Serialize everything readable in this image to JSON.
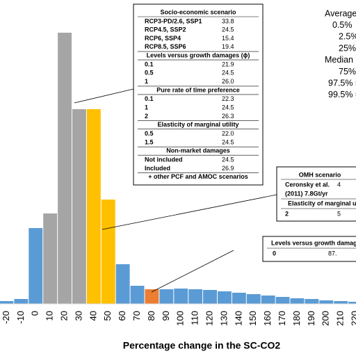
{
  "chart_data": {
    "type": "bar",
    "x_label": "Percentage change in the SC-CO2",
    "categories": [
      "-20",
      "-10",
      "0",
      "10",
      "20",
      "30",
      "40",
      "50",
      "60",
      "70",
      "80",
      "90",
      "100",
      "110",
      "120",
      "130",
      "140",
      "150",
      "160",
      "170",
      "180",
      "190",
      "200",
      "210",
      "220"
    ],
    "values": [
      4,
      7,
      109,
      130,
      390,
      280,
      280,
      150,
      57,
      26,
      21,
      21,
      22,
      21,
      20,
      18,
      16,
      14,
      12,
      10,
      8,
      7,
      5,
      4,
      3
    ],
    "colors": [
      "#5b9bd5",
      "#5b9bd5",
      "#5b9bd5",
      "#a5a5a5",
      "#a5a5a5",
      "#a5a5a5",
      "#ffc000",
      "#ffc000",
      "#5b9bd5",
      "#5b9bd5",
      "#ed7d31",
      "#5b9bd5",
      "#5b9bd5",
      "#5b9bd5",
      "#5b9bd5",
      "#5b9bd5",
      "#5b9bd5",
      "#5b9bd5",
      "#5b9bd5",
      "#5b9bd5",
      "#5b9bd5",
      "#5b9bd5",
      "#5b9bd5",
      "#5b9bd5",
      "#5b9bd5"
    ],
    "ylim": [
      0,
      400
    ],
    "stats_labels": [
      "Average",
      "0.5%",
      "2.5%",
      "25%",
      "Median",
      "75%",
      "97.5% =",
      "99.5% ="
    ],
    "callout_main": {
      "sections": [
        {
          "heading": "Socio-economic scenario",
          "rows": [
            [
              "RCP3-PD/2.6, SSP1",
              "33.8"
            ],
            [
              "RCP4.5, SSP2",
              "24.5"
            ],
            [
              "RCP6, SSP4",
              "15.4"
            ],
            [
              "RCP8.5, SSP6",
              "19.4"
            ]
          ]
        },
        {
          "heading": "Levels versus growth damages (ϕ)",
          "rows": [
            [
              "0.1",
              "21.9"
            ],
            [
              "0.5",
              "24.5"
            ],
            [
              "1",
              "26.0"
            ]
          ]
        },
        {
          "heading": "Pure rate of time preference",
          "rows": [
            [
              "0.1",
              "22.3"
            ],
            [
              "1",
              "24.5"
            ],
            [
              "2",
              "26.3"
            ]
          ]
        },
        {
          "heading": "Elasticity of marginal utility",
          "rows": [
            [
              "0.5",
              "22.0"
            ],
            [
              "1.5",
              "24.5"
            ]
          ]
        },
        {
          "heading": "Non-market damages",
          "rows": [
            [
              "Not included",
              "24.5"
            ],
            [
              "Included",
              "26.9"
            ]
          ]
        }
      ],
      "footer": "+ other PCF and AMOC scenarios"
    },
    "callout_omh": {
      "heading": "OMH scenario",
      "row_label": [
        "Ceronsky et al.",
        "(2011) 7.8Gt/yr"
      ],
      "row_value": "4",
      "subheading": "Elasticity of marginal u",
      "row2": [
        "2",
        "5"
      ]
    },
    "callout_levels": {
      "heading": "Levels versus growth damage",
      "row": [
        "0",
        "87."
      ]
    }
  }
}
